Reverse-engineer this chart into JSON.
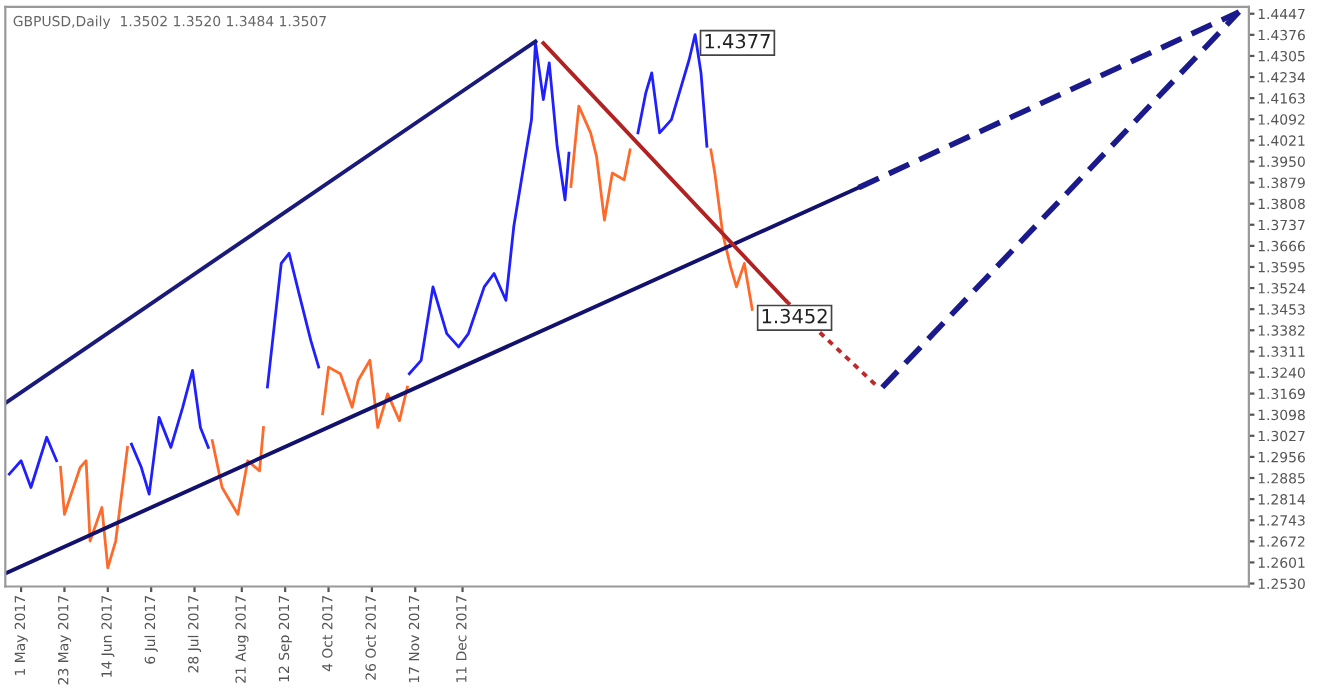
{
  "chart_data": {
    "type": "line",
    "title": "GBPUSD,Daily  1.3502 1.3520 1.3484 1.3507",
    "xlim": [
      "2017-04-23",
      "2019-01-14"
    ],
    "ylim": [
      1.252,
      1.447
    ],
    "xticks": [
      {
        "value": "2017-05-01",
        "label": "1 May 2017"
      },
      {
        "value": "2017-05-23",
        "label": "23 May 2017"
      },
      {
        "value": "2017-06-14",
        "label": "14 Jun 2017"
      },
      {
        "value": "2017-07-06",
        "label": "6 Jul 2017"
      },
      {
        "value": "2017-07-28",
        "label": "28 Jul 2017"
      },
      {
        "value": "2017-08-21",
        "label": "21 Aug 2017"
      },
      {
        "value": "2017-09-12",
        "label": "12 Sep 2017"
      },
      {
        "value": "2017-10-04",
        "label": "4 Oct 2017"
      },
      {
        "value": "2017-10-26",
        "label": "26 Oct 2017"
      },
      {
        "value": "2017-11-17",
        "label": "17 Nov 2017"
      },
      {
        "value": "2017-12-11",
        "label": "11 Dec 2017"
      }
    ],
    "yticks": [
      {
        "value": 1.253,
        "label": "1.2530"
      },
      1.2601,
      1.2672,
      1.2743,
      1.2814,
      1.2885,
      1.2956,
      1.3027,
      1.3098,
      1.3169,
      {
        "value": 1.324,
        "label": "1.3240"
      },
      1.3311,
      1.3382,
      1.3453,
      1.3524,
      1.3595,
      1.3666,
      1.3737,
      1.3808,
      1.3879,
      {
        "value": 1.395,
        "label": "1.3950"
      },
      1.4021,
      1.4092,
      1.4163,
      1.4234,
      1.4305,
      1.4376,
      1.4447
    ],
    "grid": false,
    "legend": false,
    "series": [
      {
        "color": "#1f1fff",
        "x": [
          "2017-04-25",
          "2017-05-01",
          "2017-05-06",
          "2017-05-14",
          "2017-05-19"
        ],
        "values": [
          1.2898,
          1.2943,
          1.2853,
          1.3022,
          1.2943
        ]
      },
      {
        "color": "#ff6a2b",
        "x": [
          "2017-05-21",
          "2017-05-23",
          "2017-05-31",
          "2017-06-03",
          "2017-06-05",
          "2017-06-11",
          "2017-06-14",
          "2017-06-18",
          "2017-06-24"
        ],
        "values": [
          1.2921,
          1.2763,
          1.2921,
          1.2943,
          1.2673,
          1.2786,
          1.2583,
          1.2673,
          1.2988
        ]
      },
      {
        "color": "#1f1fff",
        "x": [
          "2017-06-26",
          "2017-07-01",
          "2017-07-05",
          "2017-07-10",
          "2017-07-16",
          "2017-07-22",
          "2017-07-27",
          "2017-07-31",
          "2017-08-04"
        ],
        "values": [
          1.2999,
          1.2921,
          1.2831,
          1.3089,
          1.2988,
          1.3123,
          1.3247,
          1.3055,
          1.2988
        ]
      },
      {
        "color": "#ff6a2b",
        "x": [
          "2017-08-06",
          "2017-08-11",
          "2017-08-19",
          "2017-08-24",
          "2017-08-30",
          "2017-09-01"
        ],
        "values": [
          1.3011,
          1.2853,
          1.2763,
          1.2943,
          1.2909,
          1.3055
        ]
      },
      {
        "color": "#1f1fff",
        "x": [
          "2017-09-03",
          "2017-09-10",
          "2017-09-14",
          "2017-09-19",
          "2017-09-25",
          "2017-09-29"
        ],
        "values": [
          1.3191,
          1.3607,
          1.3641,
          1.3506,
          1.3348,
          1.3258
        ]
      },
      {
        "color": "#ff6a2b",
        "x": [
          "2017-10-01",
          "2017-10-04",
          "2017-10-10",
          "2017-10-16",
          "2017-10-19",
          "2017-10-25",
          "2017-10-29",
          "2017-11-03",
          "2017-11-09",
          "2017-11-13"
        ],
        "values": [
          1.3101,
          1.3258,
          1.3236,
          1.3123,
          1.3213,
          1.3281,
          1.3055,
          1.3168,
          1.3078,
          1.3191
        ]
      },
      {
        "color": "#1f1fff",
        "x": [
          "2017-11-14",
          "2017-11-20",
          "2017-11-26",
          "2017-12-03",
          "2017-12-09",
          "2017-12-14",
          "2017-12-22",
          "2017-12-27",
          "2018-01-02",
          "2018-01-06",
          "2018-01-11",
          "2018-01-15",
          "2018-01-17",
          "2018-01-21",
          "2018-01-24",
          "2018-01-28",
          "2018-02-01",
          "2018-02-03"
        ],
        "values": [
          1.3236,
          1.3281,
          1.3528,
          1.3371,
          1.3326,
          1.3371,
          1.3528,
          1.3573,
          1.3483,
          1.3731,
          1.3933,
          1.4091,
          1.4349,
          1.4158,
          1.4282,
          1.4001,
          1.3821,
          1.3978
        ]
      },
      {
        "color": "#ff6a2b",
        "x": [
          "2018-02-04",
          "2018-02-08",
          "2018-02-14",
          "2018-02-17",
          "2018-02-21",
          "2018-02-25",
          "2018-03-03",
          "2018-03-06"
        ],
        "values": [
          1.3866,
          1.4136,
          1.4046,
          1.3967,
          1.3753,
          1.3911,
          1.3888,
          1.3989
        ]
      },
      {
        "color": "#1f1fff",
        "x": [
          "2018-03-10",
          "2018-03-14",
          "2018-03-17",
          "2018-03-21",
          "2018-03-27",
          "2018-03-31",
          "2018-04-05",
          "2018-04-08",
          "2018-04-11",
          "2018-04-14"
        ],
        "values": [
          1.4046,
          1.4181,
          1.4248,
          1.4046,
          1.4091,
          1.4181,
          1.4293,
          1.4377,
          1.4248,
          1.4001
        ]
      },
      {
        "color": "#ff6a2b",
        "x": [
          "2018-04-16",
          "2018-04-18",
          "2018-04-22",
          "2018-04-26",
          "2018-04-29",
          "2018-05-03",
          "2018-05-07"
        ],
        "values": [
          1.3989,
          1.3911,
          1.3708,
          1.3596,
          1.3528,
          1.3607,
          1.3452
        ]
      },
      {
        "color": "#1a1a7a",
        "line_style": "solid",
        "x": [
          "2017-04-23",
          "2018-01-17"
        ],
        "values": [
          1.3137,
          1.4354
        ]
      },
      {
        "color": "#12126e",
        "line_style": "solid",
        "x": [
          "2017-04-23",
          "2018-06-30"
        ],
        "values": [
          1.2564,
          1.3862
        ]
      },
      {
        "color": "#1a1a8c",
        "line_style": "dashed",
        "x": [
          "2018-06-30",
          "2019-01-09"
        ],
        "values": [
          1.3862,
          1.4453
        ]
      },
      {
        "color": "#b22222",
        "line_style": "solid",
        "x": [
          "2018-01-21",
          "2018-05-24"
        ],
        "values": [
          1.4348,
          1.3482
        ]
      },
      {
        "color": "#c0282a",
        "line_style": "dotted",
        "x": [
          "2018-05-24",
          "2018-07-10"
        ],
        "values": [
          1.3482,
          1.319
        ]
      },
      {
        "color": "#1a1a8c",
        "line_style": "dashed",
        "x": [
          "2018-07-12",
          "2019-01-09"
        ],
        "values": [
          1.319,
          1.4453
        ]
      }
    ],
    "annotations": [
      {
        "text": "1.4377",
        "x": "2018-04-08",
        "y": 1.4377
      },
      {
        "text": "1.3452",
        "x": "2018-05-07",
        "y": 1.3452
      }
    ]
  }
}
